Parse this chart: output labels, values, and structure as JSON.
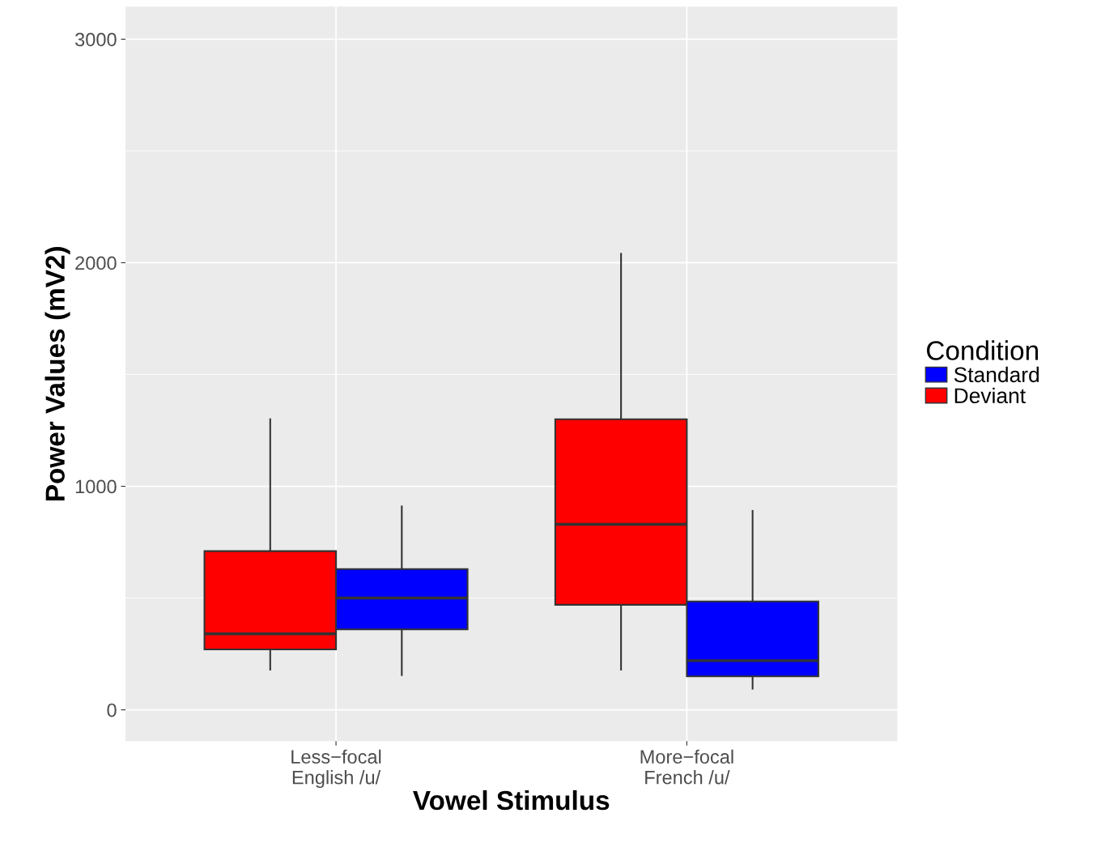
{
  "chart_data": {
    "type": "box",
    "xlabel": "Vowel Stimulus",
    "ylabel": "Power Values (mV2)",
    "legend_title": "Condition",
    "categories": [
      "Less−focal\nEnglish /u/",
      "More−focal\nFrench /u/"
    ],
    "series": [
      {
        "name": "Deviant",
        "color": "#ff0000",
        "boxes": [
          {
            "low": 180,
            "q1": 270,
            "median": 340,
            "q3": 710,
            "high": 1300
          },
          {
            "low": 180,
            "q1": 470,
            "median": 830,
            "q3": 1300,
            "high": 2040
          }
        ]
      },
      {
        "name": "Standard",
        "color": "#0000ff",
        "boxes": [
          {
            "low": 155,
            "q1": 360,
            "median": 500,
            "q3": 630,
            "high": 910
          },
          {
            "low": 95,
            "q1": 150,
            "median": 220,
            "q3": 485,
            "high": 890
          }
        ]
      }
    ],
    "ylim": [
      -140,
      3145
    ],
    "yticks": [
      0,
      1000,
      2000,
      3000
    ],
    "grid": true,
    "legend": "right"
  }
}
